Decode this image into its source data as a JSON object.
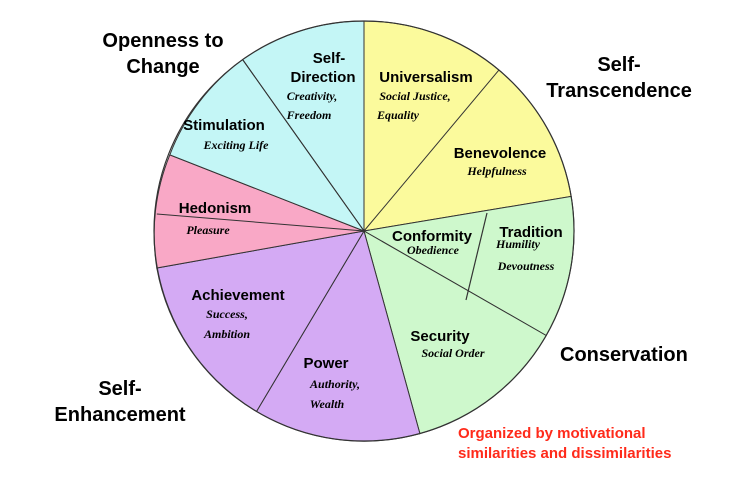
{
  "quadrants": {
    "openness_line1": "Openness to",
    "openness_line2": "Change",
    "transcendence_line1": "Self-",
    "transcendence_line2": "Transcendence",
    "conservation": "Conservation",
    "enhancement_line1": "Self-",
    "enhancement_line2": "Enhancement"
  },
  "note": {
    "line1": "Organized by motivational",
    "line2": "similarities and dissimilarities",
    "color": "#ff2a1a"
  },
  "values": [
    {
      "key": "self_direction",
      "name_line1": "Self-",
      "name_line2": "Direction",
      "desc_line1": "Creativity,",
      "desc_line2": "Freedom",
      "color": "#c4f6f6"
    },
    {
      "key": "universalism",
      "name": "Universalism",
      "desc_line1": "Social Justice,",
      "desc_line2": "Equality",
      "color": "#fbfa9c"
    },
    {
      "key": "benevolence",
      "name": "Benevolence",
      "desc": "Helpfulness",
      "color": "#fbfa9c"
    },
    {
      "key": "tradition",
      "name": "Tradition",
      "desc_line1": "Humility",
      "desc_line2": "Devoutness",
      "color": "#cef8cc"
    },
    {
      "key": "conformity",
      "name": "Conformity",
      "desc": "Obedience",
      "color": "#cef8cc"
    },
    {
      "key": "security",
      "name": "Security",
      "desc": "Social Order",
      "color": "#cef8cc"
    },
    {
      "key": "power",
      "name": "Power",
      "desc_line1": "Authority,",
      "desc_line2": "Wealth",
      "color": "#d4aaf4"
    },
    {
      "key": "achievement",
      "name": "Achievement",
      "desc_line1": "Success,",
      "desc_line2": "Ambition",
      "color": "#d4aaf4"
    },
    {
      "key": "hedonism",
      "name": "Hedonism",
      "desc": "Pleasure",
      "color": "#f9a8c6"
    },
    {
      "key": "stimulation",
      "name": "Stimulation",
      "desc": "Exciting Life",
      "color": "#c4f6f6"
    }
  ]
}
